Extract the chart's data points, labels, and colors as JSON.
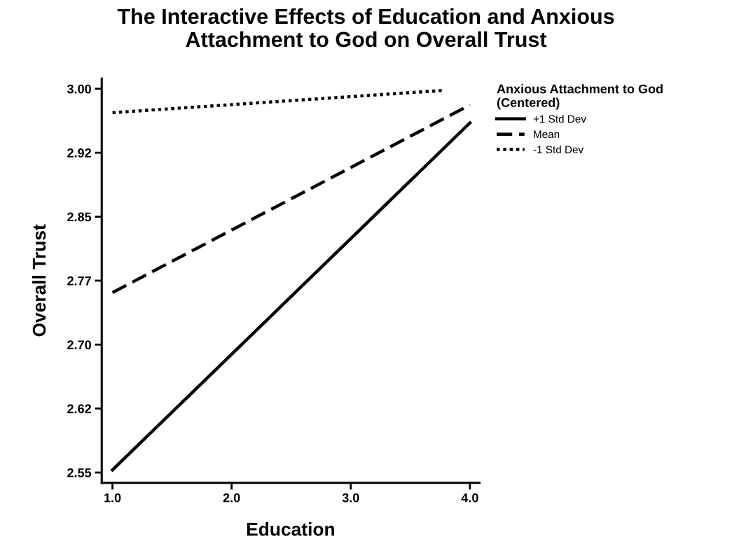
{
  "chart_data": {
    "type": "line",
    "title": "The Interactive Effects of Education and Anxious\nAttachment to God on Overall Trust",
    "xlabel": "Education",
    "ylabel": "Overall Trust",
    "legend_title": "Anxious Attachment to God\n(Centered)",
    "legend": "top right",
    "series": [
      {
        "name": "+1 Std Dev",
        "color": "#000000",
        "line_style": "solid",
        "x": [
          1.0,
          4.0
        ],
        "values": [
          2.553,
          2.96
        ]
      },
      {
        "name": "Mean",
        "color": "#000000",
        "line_style": "dashed",
        "x": [
          1.0,
          4.0
        ],
        "values": [
          2.761,
          2.981
        ]
      },
      {
        "name": "-1 Std Dev",
        "color": "#000000",
        "line_style": "dotted",
        "x": [
          1.0,
          3.77
        ],
        "values": [
          2.972,
          2.998
        ]
      }
    ],
    "xlim": [
      0.91,
      4.08
    ],
    "xticks": [
      {
        "value": 1,
        "label": "1.0"
      },
      {
        "value": 2,
        "label": "2.0"
      },
      {
        "value": 3,
        "label": "3.0"
      },
      {
        "value": 4,
        "label": "4.0"
      }
    ],
    "ylim": [
      2.538,
      3.012
    ],
    "yticks": [
      {
        "value": 2.55,
        "label": "2.55"
      },
      {
        "value": 2.625,
        "label": "2.62"
      },
      {
        "value": 2.7,
        "label": "2.70"
      },
      {
        "value": 2.775,
        "label": "2.77"
      },
      {
        "value": 2.85,
        "label": "2.85"
      },
      {
        "value": 2.925,
        "label": "2.92"
      },
      {
        "value": 3.0,
        "label": "3.00"
      }
    ],
    "grid": false
  }
}
